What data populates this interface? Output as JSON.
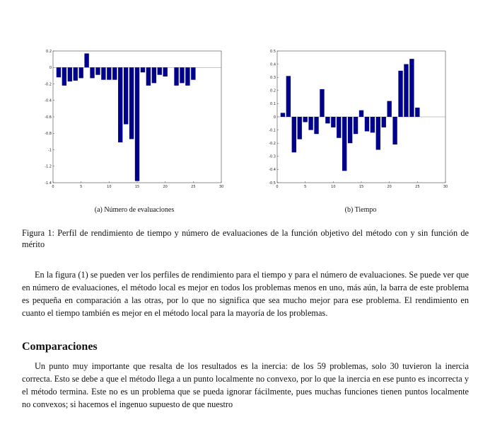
{
  "chart_data": [
    {
      "type": "bar",
      "x": [
        1,
        2,
        3,
        4,
        5,
        6,
        7,
        8,
        9,
        10,
        11,
        12,
        13,
        14,
        15,
        16,
        17,
        18,
        19,
        20,
        21,
        22,
        23,
        24,
        25
      ],
      "values": [
        -0.12,
        -0.22,
        -0.17,
        -0.16,
        -0.13,
        0.17,
        -0.13,
        -0.09,
        -0.15,
        -0.15,
        -0.15,
        -0.91,
        -0.69,
        -0.87,
        -1.38,
        -0.06,
        -0.22,
        -0.19,
        -0.09,
        -0.11,
        0.0,
        -0.22,
        -0.19,
        -0.22,
        -0.15
      ],
      "xlim": [
        0,
        30
      ],
      "ylim": [
        -1.4,
        0.2
      ],
      "xticks": [
        "0",
        "5",
        "10",
        "15",
        "20",
        "25",
        "30"
      ],
      "yticks": [
        "0.2",
        "0",
        "-0.2",
        "-0.4",
        "-0.6",
        "-0.8",
        "-1",
        "-1.2",
        "-1.4"
      ],
      "bar_color": "#00008B",
      "grid": false
    },
    {
      "type": "bar",
      "x": [
        1,
        2,
        3,
        4,
        5,
        6,
        7,
        8,
        9,
        10,
        11,
        12,
        13,
        14,
        15,
        16,
        17,
        18,
        19,
        20,
        21,
        22,
        23,
        24,
        25
      ],
      "values": [
        0.03,
        0.31,
        -0.27,
        -0.17,
        -0.04,
        -0.1,
        -0.13,
        0.21,
        -0.05,
        -0.08,
        -0.16,
        -0.41,
        -0.2,
        -0.13,
        0.05,
        -0.11,
        -0.12,
        -0.25,
        -0.08,
        0.12,
        -0.21,
        0.35,
        0.4,
        0.44,
        0.07
      ],
      "xlim": [
        0,
        30
      ],
      "ylim": [
        -0.5,
        0.5
      ],
      "xticks": [
        "0",
        "5",
        "10",
        "15",
        "20",
        "25",
        "30"
      ],
      "yticks": [
        "0.5",
        "0.4",
        "0.3",
        "0.2",
        "0.1",
        "0",
        "-0.1",
        "-0.2",
        "-0.3",
        "-0.4",
        "-0.5"
      ],
      "bar_color": "#00008B",
      "grid": false
    }
  ],
  "subcaptions": {
    "a": "(a) Número de evaluaciones",
    "b": "(b) Tiempo"
  },
  "caption": "Figura 1: Perfil de rendimiento de tiempo y número de evaluaciones de la función objetivo del método con y sin función de mérito",
  "paragraph1": "En la figura (1) se pueden ver los perfiles de rendimiento para el tiempo y para el número de evaluaciones. Se puede ver que en número de evaluaciones, el método local es mejor en todos los problemas menos en uno, más aún, la barra de este problema es pequeña en comparación a las otras, por lo que no significa que sea mucho mejor para ese problema. El rendimiento en cuanto el tiempo también es mejor en el método local para la mayoría de los problemas.",
  "section_heading": "Comparaciones",
  "paragraph2": "Un punto muy importante que resalta de los resultados es la inercia: de los 59 problemas, solo 30 tuvieron la inercia correcta. Esto se debe a que el método llega a un punto localmente no convexo, por lo que la inercia en ese punto es incorrecta y el método termina. Este no es un problema que se pueda ignorar fácilmente, pues muchas funciones tienen puntos localmente no convexos; si hacemos el ingenuo supuesto de que nuestro"
}
